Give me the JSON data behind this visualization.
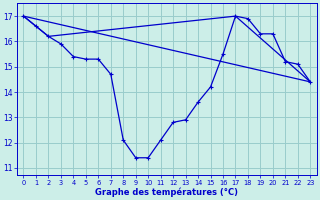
{
  "title": "Graphe des températures (°C)",
  "background_color": "#cceee8",
  "grid_color": "#99cccc",
  "line_color": "#0000cc",
  "xlim": [
    -0.5,
    23.5
  ],
  "ylim": [
    10.7,
    17.5
  ],
  "yticks": [
    11,
    12,
    13,
    14,
    15,
    16,
    17
  ],
  "xticks": [
    0,
    1,
    2,
    3,
    4,
    5,
    6,
    7,
    8,
    9,
    10,
    11,
    12,
    13,
    14,
    15,
    16,
    17,
    18,
    19,
    20,
    21,
    22,
    23
  ],
  "series1": {
    "x": [
      0,
      1,
      2,
      3,
      4,
      5,
      6,
      7,
      8,
      9,
      10,
      11,
      12,
      13,
      14,
      15,
      16,
      17,
      18,
      19,
      20,
      21,
      22,
      23
    ],
    "y": [
      17.0,
      16.6,
      16.2,
      15.9,
      15.4,
      15.3,
      15.3,
      14.7,
      12.1,
      11.4,
      11.4,
      12.1,
      12.8,
      12.9,
      13.6,
      14.2,
      15.5,
      17.0,
      16.9,
      16.3,
      16.3,
      15.2,
      15.1,
      14.4
    ]
  },
  "series2": {
    "x": [
      0,
      23
    ],
    "y": [
      17.0,
      14.4
    ]
  },
  "series3": {
    "x": [
      0,
      2,
      17,
      23
    ],
    "y": [
      17.0,
      16.2,
      17.0,
      14.4
    ]
  }
}
